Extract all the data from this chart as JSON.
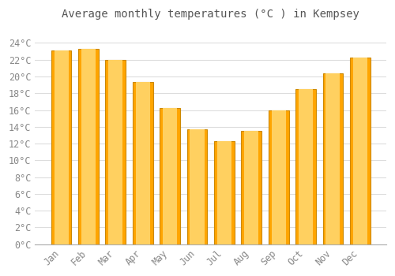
{
  "title": "Average monthly temperatures (°C ) in Kempsey",
  "months": [
    "Jan",
    "Feb",
    "Mar",
    "Apr",
    "May",
    "Jun",
    "Jul",
    "Aug",
    "Sep",
    "Oct",
    "Nov",
    "Dec"
  ],
  "values": [
    23.1,
    23.3,
    22.0,
    19.3,
    16.2,
    13.7,
    12.3,
    13.5,
    16.0,
    18.5,
    20.4,
    22.3
  ],
  "bar_color": "#FFA500",
  "bar_edge_color": "#CC8800",
  "background_color": "#FFFFFF",
  "grid_color": "#DDDDDD",
  "text_color": "#888888",
  "title_color": "#555555",
  "ylim": [
    0,
    26
  ],
  "yticks": [
    0,
    2,
    4,
    6,
    8,
    10,
    12,
    14,
    16,
    18,
    20,
    22,
    24
  ],
  "title_fontsize": 10,
  "tick_fontsize": 8.5,
  "xlabel_rotation": 45
}
